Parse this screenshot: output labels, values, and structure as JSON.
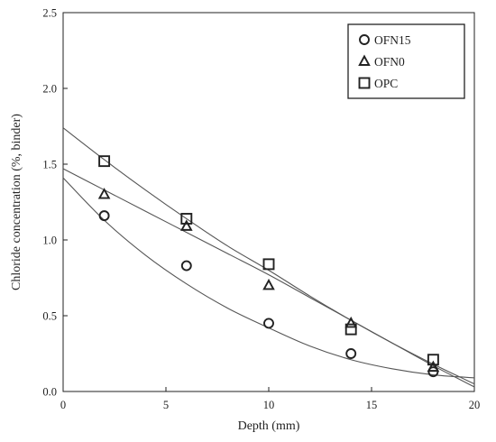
{
  "chart_data": {
    "type": "scatter",
    "xlabel": "Depth (mm)",
    "ylabel": "Chloride concentration (%, binder)",
    "xlim": [
      0,
      20
    ],
    "ylim": [
      0,
      2.5
    ],
    "xticks": [
      0,
      5,
      10,
      15,
      20
    ],
    "xtick_labels": [
      "0",
      "5",
      "10",
      "15",
      "20"
    ],
    "yticks": [
      0,
      0.5,
      1.0,
      1.5,
      2.0,
      2.5
    ],
    "ytick_labels": [
      "0.0",
      "0.5",
      "1.0",
      "1.5",
      "2.0",
      "2.5"
    ],
    "grid": false,
    "legend_position": "top-right",
    "series": [
      {
        "name": "OFN15",
        "marker": "circle",
        "x": [
          2,
          6,
          10,
          14,
          18
        ],
        "y": [
          1.16,
          0.83,
          0.45,
          0.25,
          0.13
        ],
        "fit_curve": {
          "x": [
            0,
            2,
            4,
            6,
            8,
            10,
            12,
            14,
            16,
            18,
            20
          ],
          "y": [
            1.41,
            1.13,
            0.9,
            0.71,
            0.55,
            0.42,
            0.3,
            0.21,
            0.15,
            0.11,
            0.09
          ]
        }
      },
      {
        "name": "OFN0",
        "marker": "triangle",
        "x": [
          2,
          6,
          10,
          14,
          18
        ],
        "y": [
          1.3,
          1.09,
          0.7,
          0.45,
          0.16
        ],
        "fit_curve": {
          "x": [
            0,
            2,
            4,
            6,
            8,
            10,
            12,
            14,
            16,
            18,
            20
          ],
          "y": [
            1.47,
            1.33,
            1.19,
            1.05,
            0.91,
            0.77,
            0.62,
            0.47,
            0.32,
            0.17,
            0.03
          ]
        }
      },
      {
        "name": "OPC",
        "marker": "square",
        "x": [
          2,
          6,
          10,
          14,
          18
        ],
        "y": [
          1.52,
          1.14,
          0.84,
          0.41,
          0.21
        ],
        "fit_curve": {
          "x": [
            0,
            2,
            4,
            6,
            8,
            10,
            12,
            14,
            16,
            18,
            20
          ],
          "y": [
            1.74,
            1.53,
            1.33,
            1.14,
            0.96,
            0.8,
            0.63,
            0.47,
            0.32,
            0.18,
            0.05
          ]
        }
      }
    ]
  }
}
